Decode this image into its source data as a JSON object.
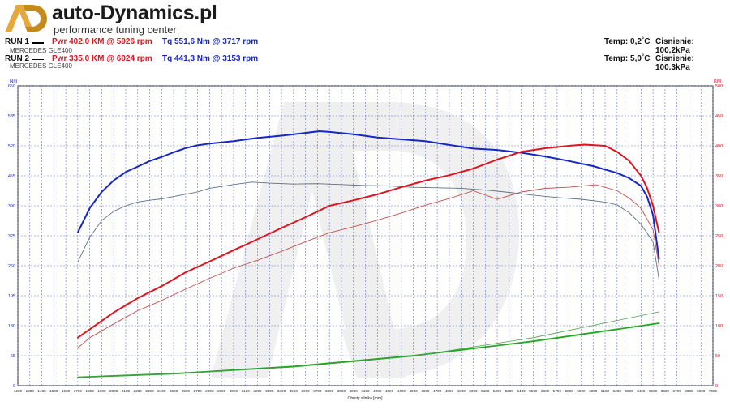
{
  "header": {
    "brand_name": "auto-Dynamics.pl",
    "brand_subtitle": "performance tuning center",
    "logo_letters": "AD"
  },
  "runs": [
    {
      "label": "RUN 1",
      "power": "Pwr  402,0 KM @ 5926 rpm",
      "torque": "Tq 551,6 Nm @ 3717 rpm",
      "car": "MERCEDES GLE400",
      "temp": "Temp: 0,2˚C",
      "pressure": "Cisnienie: 100,2kPa"
    },
    {
      "label": "RUN 2",
      "power": "Pwr  335,0 KM @ 6024 rpm",
      "torque": "Tq 441,3 Nm @ 3153 rpm",
      "car": "MERCEDES GLE400",
      "temp": "Temp: 5,0˚C",
      "pressure": "Cisnienie: 100,3kPa"
    }
  ],
  "colors": {
    "power": "#e0141e",
    "torque": "#1727c4",
    "loss": "#1fa81f",
    "grid": "#5f6fd8"
  },
  "chart_data": {
    "type": "line",
    "xlabel": "Obroty silnika [rpm]",
    "ylabel_left": "Nm",
    "ylabel_right": "KM",
    "xlim": [
      1200,
      7000
    ],
    "ylim_left": [
      0,
      650
    ],
    "ylim_right": [
      0,
      500
    ],
    "x_ticks": [
      1200,
      1300,
      1400,
      1500,
      1600,
      1700,
      1800,
      1900,
      2000,
      2100,
      2200,
      2300,
      2400,
      2500,
      2600,
      2700,
      2800,
      2900,
      3000,
      3100,
      3200,
      3300,
      3400,
      3500,
      3600,
      3700,
      3800,
      3900,
      4000,
      4100,
      4200,
      4300,
      4400,
      4500,
      4600,
      4700,
      4800,
      4900,
      5000,
      5100,
      5200,
      5300,
      5400,
      5500,
      5600,
      5700,
      5800,
      5900,
      6000,
      6100,
      6200,
      6300,
      6400,
      6500,
      6600,
      6700,
      6800,
      6900,
      7000
    ],
    "y_ticks_left": [
      "650",
      "585",
      "520",
      "455",
      "390",
      "325",
      "260",
      "195",
      "130",
      "65",
      "0"
    ],
    "y_ticks_right": [
      "500",
      "450",
      "400",
      "350",
      "300",
      "250",
      "200",
      "150",
      "100",
      "50",
      "0"
    ],
    "series": [
      {
        "name": "Tq RUN 1",
        "axis": "left",
        "role": "torque1",
        "x": [
          1700,
          1800,
          1900,
          2000,
          2100,
          2200,
          2300,
          2400,
          2500,
          2600,
          2700,
          2800,
          3000,
          3200,
          3400,
          3600,
          3717,
          3800,
          4000,
          4200,
          4400,
          4600,
          4800,
          5000,
          5200,
          5400,
          5600,
          5800,
          6000,
          6200,
          6300,
          6400,
          6450,
          6500,
          6550
        ],
        "y": [
          332,
          385,
          420,
          445,
          463,
          475,
          487,
          496,
          506,
          515,
          521,
          525,
          530,
          537,
          542,
          548,
          551.6,
          550,
          545,
          538,
          534,
          530,
          522,
          514,
          511,
          505,
          497,
          487,
          476,
          461,
          450,
          433,
          410,
          370,
          275
        ]
      },
      {
        "name": "Tq RUN 2",
        "axis": "left",
        "role": "torque2",
        "x": [
          1700,
          1800,
          1900,
          2000,
          2100,
          2200,
          2300,
          2400,
          2500,
          2600,
          2700,
          2800,
          3000,
          3153,
          3300,
          3500,
          3700,
          3900,
          4100,
          4300,
          4500,
          4700,
          4900,
          5100,
          5300,
          5500,
          5700,
          5900,
          6100,
          6200,
          6300,
          6400,
          6500,
          6550
        ],
        "y": [
          268,
          322,
          358,
          378,
          390,
          398,
          402,
          405,
          410,
          415,
          420,
          428,
          436,
          441.3,
          439,
          437,
          438,
          436,
          434,
          433,
          430,
          429,
          428,
          424,
          419,
          413,
          408,
          404,
          398,
          392,
          375,
          350,
          312,
          230
        ]
      },
      {
        "name": "Pwr RUN 1",
        "axis": "right",
        "role": "power1",
        "x": [
          1700,
          1800,
          2000,
          2200,
          2400,
          2600,
          2800,
          3000,
          3200,
          3400,
          3600,
          3800,
          4000,
          4200,
          4400,
          4600,
          4800,
          5000,
          5200,
          5400,
          5600,
          5800,
          5926,
          6100,
          6200,
          6300,
          6400,
          6450,
          6500,
          6550
        ],
        "y": [
          80,
          94,
          122,
          146,
          166,
          189,
          207,
          226,
          244,
          263,
          281,
          300,
          309,
          319,
          331,
          342,
          351,
          362,
          377,
          390,
          396,
          400,
          402,
          400,
          390,
          375,
          350,
          330,
          300,
          255
        ]
      },
      {
        "name": "Pwr RUN 2",
        "axis": "right",
        "role": "power2",
        "x": [
          1700,
          1800,
          2000,
          2200,
          2400,
          2600,
          2800,
          3000,
          3200,
          3400,
          3600,
          3800,
          4000,
          4200,
          4400,
          4600,
          4800,
          5000,
          5200,
          5400,
          5600,
          5800,
          6024,
          6200,
          6300,
          6400,
          6500,
          6550
        ],
        "y": [
          63,
          80,
          103,
          125,
          142,
          161,
          179,
          196,
          209,
          224,
          240,
          255,
          265,
          276,
          288,
          301,
          312,
          325,
          311,
          323,
          329,
          331,
          335,
          325,
          313,
          296,
          260,
          200
        ]
      },
      {
        "name": "Loss RUN 1",
        "axis": "right",
        "role": "loss1",
        "x": [
          1700,
          2500,
          3500,
          4500,
          5500,
          6550
        ],
        "y": [
          14,
          20,
          32,
          50,
          74,
          104
        ]
      },
      {
        "name": "Loss RUN 2",
        "axis": "right",
        "role": "loss2",
        "x": [
          1700,
          2500,
          3500,
          4500,
          5500,
          6550
        ],
        "y": [
          14,
          20,
          31,
          49,
          80,
          123
        ]
      }
    ]
  }
}
